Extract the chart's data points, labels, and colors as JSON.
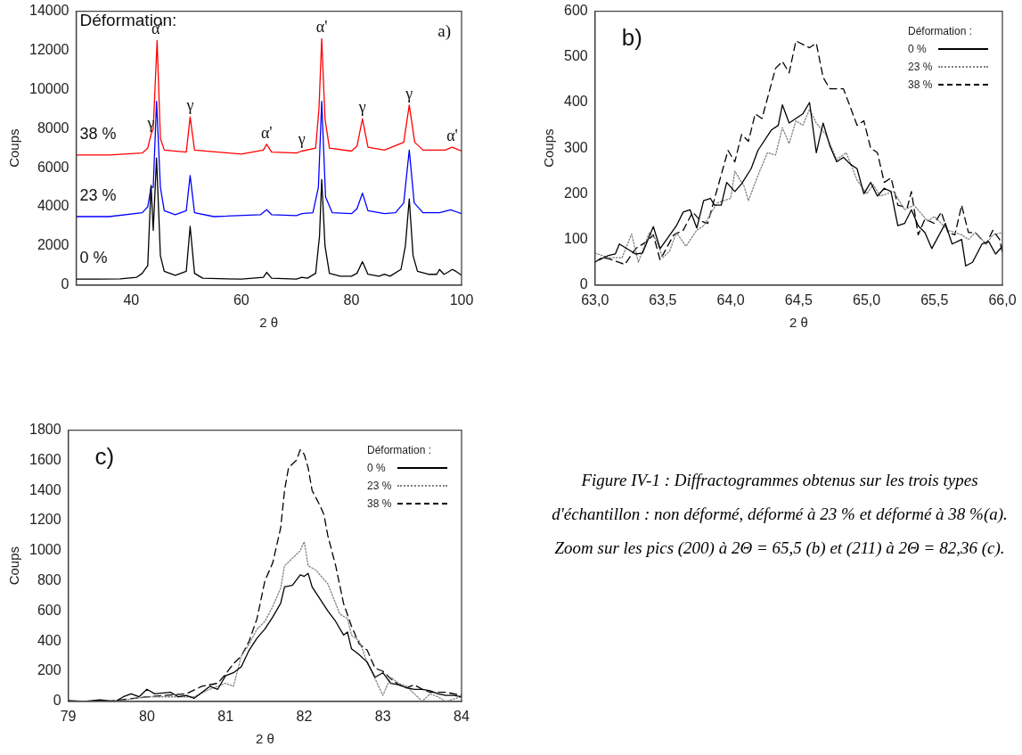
{
  "chart_data": [
    {
      "type": "line",
      "xlabel": "2 θ",
      "ylabel": "Coups",
      "xlim": [
        30,
        100
      ],
      "xticks": [
        40,
        60,
        80,
        100
      ],
      "ylim": [
        0,
        14000
      ],
      "yticks": [
        0,
        2000,
        4000,
        6000,
        8000,
        10000,
        12000,
        14000
      ],
      "annotations": [
        "Déformation:",
        "a)",
        {
          "text": "γ",
          "x": 43.6,
          "y": 7700
        },
        {
          "text": "α'",
          "x": 44.7,
          "y": 12500
        },
        {
          "text": "γ",
          "x": 50.7,
          "y": 8600
        },
        {
          "text": "α'",
          "x": 64.6,
          "y": 7200
        },
        {
          "text": "γ",
          "x": 71,
          "y": 6850
        },
        {
          "text": "α'",
          "x": 74.6,
          "y": 12600
        },
        {
          "text": "γ",
          "x": 82,
          "y": 8500
        },
        {
          "text": "γ",
          "x": 90.5,
          "y": 9200
        },
        {
          "text": "α'",
          "x": 98.3,
          "y": 7050
        }
      ],
      "series": [
        {
          "name": "0 %",
          "color": "#000000",
          "x": [
            30,
            34,
            38,
            41,
            42,
            43,
            43.6,
            44,
            44.6,
            45.3,
            46,
            47,
            48,
            50,
            50.7,
            51.5,
            53,
            60,
            64,
            64.6,
            65.5,
            70,
            71,
            72,
            73.5,
            74.2,
            74.6,
            75.2,
            76,
            78,
            80,
            81,
            82,
            83,
            85,
            86,
            87,
            89,
            89.8,
            90.5,
            91.2,
            92,
            94,
            95.5,
            96,
            96.8,
            97.5,
            98.3,
            99,
            100
          ],
          "values": [
            300,
            300,
            320,
            400,
            600,
            1000,
            5100,
            2800,
            6500,
            1500,
            700,
            600,
            500,
            700,
            3000,
            600,
            350,
            300,
            400,
            650,
            350,
            300,
            400,
            350,
            600,
            2500,
            5400,
            2000,
            600,
            450,
            450,
            600,
            1200,
            550,
            450,
            550,
            450,
            800,
            2000,
            4400,
            1500,
            700,
            550,
            550,
            800,
            550,
            650,
            800,
            700,
            500
          ]
        },
        {
          "name": "23 %",
          "color": "#0000ff",
          "x": [
            30,
            36,
            42,
            43,
            43.6,
            44,
            44.6,
            45.3,
            46,
            48,
            50,
            50.7,
            51.5,
            55,
            63.5,
            64.6,
            65.5,
            70,
            71,
            73,
            74,
            74.6,
            75.3,
            76.5,
            80,
            81,
            82,
            83,
            86,
            88,
            89.5,
            90.5,
            91.4,
            93,
            96,
            98,
            100
          ],
          "values": [
            3500,
            3500,
            3700,
            4000,
            5000,
            5000,
            9400,
            5000,
            3800,
            3600,
            3800,
            5600,
            3700,
            3500,
            3600,
            3850,
            3600,
            3550,
            3650,
            3700,
            5000,
            9400,
            4500,
            3700,
            3650,
            3900,
            4700,
            3800,
            3650,
            3700,
            4200,
            6900,
            4200,
            3700,
            3700,
            3850,
            3650
          ]
        },
        {
          "name": "38 %",
          "color": "#ff0000",
          "x": [
            30,
            36,
            42,
            43,
            43.6,
            44,
            44.7,
            45.3,
            46,
            50,
            50.7,
            51.5,
            60,
            64,
            64.6,
            65.5,
            70,
            71,
            73.5,
            74.1,
            74.6,
            75.2,
            76,
            80,
            81,
            82,
            83,
            86,
            89.5,
            90.5,
            91.5,
            93,
            97,
            98.3,
            100
          ],
          "values": [
            6650,
            6650,
            6750,
            7000,
            7700,
            8000,
            12500,
            7500,
            6900,
            6800,
            8600,
            6900,
            6700,
            6900,
            7200,
            6800,
            6750,
            6850,
            7000,
            9000,
            12600,
            8500,
            7000,
            6850,
            7100,
            8500,
            7050,
            6900,
            7300,
            9200,
            7300,
            6900,
            6900,
            7050,
            6850
          ]
        }
      ]
    },
    {
      "type": "line",
      "xlabel": "2 θ",
      "ylabel": "Coups",
      "legend": "top right",
      "legend_title": "Déformation :",
      "xlim": [
        63,
        66
      ],
      "xticks": [
        {
          "value": 63,
          "label": "63,0"
        },
        {
          "value": 63.5,
          "label": "63,5"
        },
        {
          "value": 64,
          "label": "64,0"
        },
        {
          "value": 64.5,
          "label": "64,5"
        },
        {
          "value": 65,
          "label": "65,0"
        },
        {
          "value": 65.5,
          "label": "65,5"
        },
        {
          "value": 66,
          "label": "66,0"
        }
      ],
      "ylim": [
        0,
        600
      ],
      "yticks": [
        0,
        100,
        200,
        300,
        400,
        500,
        600
      ],
      "annotations": [
        "b)"
      ],
      "series": [
        {
          "name": "0 %",
          "color": "#000000",
          "line_style": "solid",
          "x": [
            63.03,
            63.1,
            63.15,
            63.18,
            63.3,
            63.35,
            63.43,
            63.48,
            63.6,
            63.65,
            63.7,
            63.75,
            63.8,
            63.85,
            63.88,
            63.93,
            63.97,
            64.03,
            64.08,
            64.15,
            64.2,
            64.3,
            64.35,
            64.38,
            64.43,
            64.53,
            64.58,
            64.63,
            64.68,
            64.73,
            64.78,
            64.83,
            64.88,
            64.93,
            64.98,
            65.03,
            65.08,
            65.13,
            65.18,
            65.23,
            65.28,
            65.33,
            65.38,
            65.43,
            65.48,
            65.58,
            65.63,
            65.7,
            65.73,
            65.78,
            65.85,
            65.9,
            65.95,
            66
          ],
          "values": [
            55,
            65,
            68,
            90,
            68,
            70,
            128,
            80,
            130,
            160,
            165,
            125,
            185,
            190,
            175,
            175,
            225,
            205,
            222,
            255,
            295,
            340,
            350,
            395,
            355,
            375,
            400,
            290,
            355,
            305,
            270,
            280,
            265,
            255,
            200,
            225,
            195,
            212,
            205,
            130,
            135,
            165,
            130,
            115,
            80,
            135,
            90,
            100,
            42,
            50,
            90,
            95,
            68,
            85
          ]
        },
        {
          "name": "23 %",
          "color": "#808080",
          "line_style": "dotted",
          "x": [
            63,
            63.1,
            63.2,
            63.27,
            63.32,
            63.4,
            63.45,
            63.5,
            63.55,
            63.6,
            63.67,
            63.75,
            63.8,
            63.85,
            63.9,
            64,
            64.03,
            64.1,
            64.13,
            64.2,
            64.27,
            64.33,
            64.38,
            64.43,
            64.48,
            64.53,
            64.58,
            64.63,
            64.7,
            64.78,
            64.85,
            64.93,
            65,
            65.05,
            65.1,
            65.2,
            65.28,
            65.35,
            65.45,
            65.5,
            65.55,
            65.6,
            65.7,
            65.75,
            65.8,
            65.88,
            65.93,
            66
          ],
          "values": [
            70,
            60,
            60,
            112,
            50,
            115,
            100,
            60,
            75,
            115,
            85,
            120,
            130,
            155,
            180,
            190,
            250,
            215,
            185,
            240,
            290,
            285,
            345,
            310,
            360,
            350,
            385,
            355,
            330,
            275,
            290,
            230,
            200,
            220,
            195,
            205,
            165,
            175,
            140,
            150,
            135,
            120,
            110,
            100,
            115,
            90,
            110,
            115
          ]
        },
        {
          "name": "38 %",
          "color": "#000000",
          "line_style": "dashed",
          "x": [
            63,
            63.05,
            63.1,
            63.22,
            63.3,
            63.38,
            63.43,
            63.48,
            63.58,
            63.65,
            63.72,
            63.78,
            63.83,
            63.9,
            63.98,
            64.03,
            64.08,
            64.13,
            64.18,
            64.23,
            64.33,
            64.38,
            64.43,
            64.48,
            64.58,
            64.63,
            64.68,
            64.73,
            64.83,
            64.93,
            64.98,
            65.03,
            65.08,
            65.13,
            65.18,
            65.23,
            65.3,
            65.33,
            65.38,
            65.43,
            65.5,
            65.55,
            65.6,
            65.65,
            65.7,
            65.75,
            65.8,
            65.88,
            65.93,
            65.98,
            66
          ],
          "values": [
            50,
            60,
            58,
            45,
            80,
            95,
            110,
            55,
            110,
            120,
            160,
            140,
            135,
            210,
            295,
            270,
            330,
            315,
            375,
            365,
            475,
            490,
            465,
            535,
            520,
            530,
            455,
            430,
            430,
            350,
            360,
            300,
            290,
            225,
            235,
            175,
            170,
            205,
            110,
            145,
            135,
            160,
            115,
            110,
            175,
            115,
            115,
            90,
            120,
            100,
            70
          ]
        }
      ]
    },
    {
      "type": "line",
      "xlabel": "2 θ",
      "ylabel": "Coups",
      "legend": "top right",
      "legend_title": "Déformation :",
      "xlim": [
        79,
        84
      ],
      "xticks": [
        79,
        80,
        81,
        82,
        83,
        84
      ],
      "ylim": [
        0,
        1800
      ],
      "yticks": [
        0,
        200,
        400,
        600,
        800,
        1000,
        1200,
        1400,
        1600,
        1800
      ],
      "annotations": [
        "c)"
      ],
      "series": [
        {
          "name": "0 %",
          "color": "#000000",
          "line_style": "solid",
          "x": [
            79,
            79.2,
            79.4,
            79.6,
            79.7,
            79.8,
            79.9,
            80,
            80.1,
            80.3,
            80.4,
            80.5,
            80.6,
            80.7,
            80.8,
            80.9,
            81,
            81.1,
            81.2,
            81.3,
            81.4,
            81.5,
            81.6,
            81.7,
            81.75,
            81.85,
            81.95,
            82,
            82.05,
            82.1,
            82.2,
            82.3,
            82.4,
            82.5,
            82.55,
            82.6,
            82.7,
            82.8,
            82.9,
            83,
            83.1,
            83.2,
            83.3,
            83.4,
            83.5,
            83.6,
            83.7,
            83.8,
            83.9,
            84
          ],
          "values": [
            5,
            0,
            10,
            0,
            30,
            50,
            30,
            80,
            50,
            60,
            30,
            40,
            20,
            60,
            100,
            80,
            170,
            190,
            230,
            340,
            420,
            480,
            560,
            650,
            760,
            770,
            840,
            830,
            850,
            760,
            680,
            600,
            530,
            440,
            460,
            350,
            310,
            260,
            160,
            190,
            120,
            110,
            90,
            80,
            80,
            70,
            50,
            40,
            40,
            30
          ]
        },
        {
          "name": "23 %",
          "color": "#808080",
          "line_style": "dotted",
          "x": [
            79.6,
            80,
            80.4,
            80.6,
            80.8,
            81,
            81.1,
            81.2,
            81.3,
            81.4,
            81.5,
            81.6,
            81.7,
            81.75,
            81.85,
            81.95,
            82,
            82.05,
            82.15,
            82.3,
            82.4,
            82.45,
            82.55,
            82.6,
            82.7,
            82.8,
            82.9,
            83,
            83.1,
            83.2,
            83.3,
            83.4,
            83.5,
            83.6,
            83.7,
            83.8,
            84
          ],
          "values": [
            0,
            30,
            30,
            30,
            80,
            120,
            100,
            300,
            380,
            480,
            530,
            630,
            750,
            900,
            950,
            1000,
            1060,
            900,
            870,
            780,
            650,
            580,
            550,
            440,
            400,
            260,
            150,
            40,
            160,
            120,
            100,
            50,
            0,
            50,
            30,
            0,
            30
          ]
        },
        {
          "name": "38 %",
          "color": "#000000",
          "line_style": "dashed",
          "x": [
            79.5,
            80,
            80.5,
            80.7,
            80.9,
            81,
            81.1,
            81.2,
            81.3,
            81.4,
            81.5,
            81.6,
            81.7,
            81.75,
            81.8,
            81.9,
            81.95,
            82,
            82.05,
            82.1,
            82.2,
            82.25,
            82.3,
            82.4,
            82.5,
            82.6,
            82.7,
            82.8,
            82.9,
            83,
            83.1,
            83.2,
            83.3,
            83.4,
            83.5,
            83.6,
            83.8,
            84
          ],
          "values": [
            0,
            30,
            50,
            100,
            120,
            180,
            250,
            300,
            400,
            550,
            800,
            920,
            1150,
            1400,
            1550,
            1600,
            1670,
            1640,
            1550,
            1400,
            1300,
            1240,
            1100,
            900,
            650,
            500,
            380,
            340,
            220,
            200,
            150,
            110,
            90,
            110,
            80,
            60,
            60,
            40
          ]
        }
      ]
    },
    {
      "type": "other",
      "annotations": [
        "Figure IV-1 : Diffractogrammes obtenus sur les trois types d'échantillon : non déformé, déformé à 23 % et déformé à 38 %(a). Zoom sur les pics (200) à 2Θ = 65,5 (b) et (211) à 2Θ = 82,36 (c)."
      ]
    }
  ]
}
